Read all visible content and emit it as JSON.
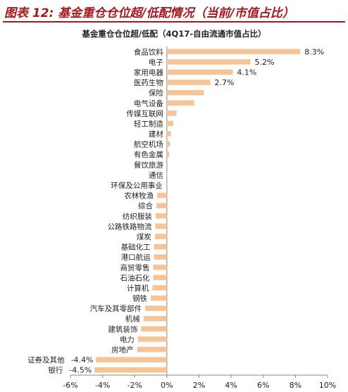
{
  "header": {
    "figure_title": "图表 12: 基金重仓仓位超/低配情况（当前/市值占比）"
  },
  "chart_data": {
    "type": "bar",
    "orientation": "horizontal",
    "title": "基金重仓仓位超/低配（4Q17-自由流通市值占比）",
    "xlabel": "",
    "ylabel": "",
    "xlim": [
      -6,
      10
    ],
    "x_ticks": [
      "-6%",
      "-4%",
      "-2%",
      "0%",
      "2%",
      "4%",
      "6%",
      "8%",
      "10%"
    ],
    "grid": false,
    "legend": "none",
    "bar_color": "#f6c496",
    "axis_color": "#888888",
    "categories": [
      "食品饮料",
      "电子",
      "家用电器",
      "医药生物",
      "保险",
      "电气设备",
      "传媒互联网",
      "轻工制造",
      "建材",
      "航空机场",
      "有色金属",
      "餐饮旅游",
      "通信",
      "环保及公用事业",
      "农林牧渔",
      "综合",
      "纺织服装",
      "公路铁路物流",
      "煤炭",
      "基础化工",
      "港口航运",
      "商贸零售",
      "石油石化",
      "计算机",
      "钢铁",
      "汽车及其零部件",
      "机械",
      "建筑装饰",
      "电力",
      "房地产",
      "证券及其他",
      "银行"
    ],
    "values": [
      8.3,
      5.2,
      4.1,
      2.7,
      2.3,
      1.7,
      0.6,
      0.4,
      0.25,
      0.2,
      0.15,
      0.05,
      0.03,
      -0.05,
      -0.6,
      -0.65,
      -0.7,
      -0.72,
      -0.75,
      -0.8,
      -0.8,
      -0.85,
      -0.85,
      -0.9,
      -1.0,
      -1.35,
      -1.45,
      -1.6,
      -1.8,
      -1.85,
      -4.4,
      -4.5
    ],
    "data_labels": [
      "8.3%",
      "5.2%",
      "4.1%",
      "2.7%",
      "",
      "",
      "",
      "",
      "",
      "",
      "",
      "",
      "",
      "",
      "",
      "",
      "",
      "",
      "",
      "",
      "",
      "",
      "",
      "",
      "",
      "",
      "",
      "",
      "",
      "",
      "-4.4%",
      "-4.5%"
    ]
  }
}
